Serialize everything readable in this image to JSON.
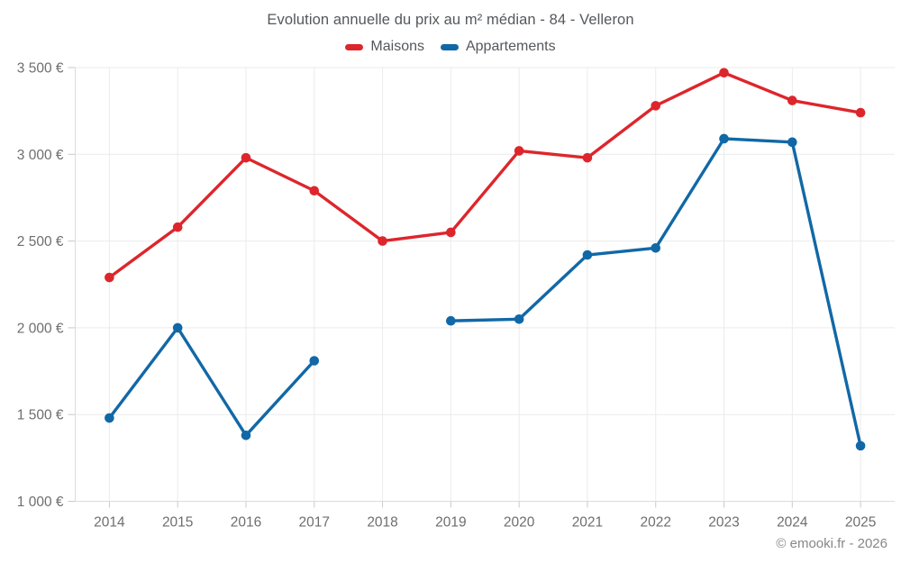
{
  "header": {
    "title": "Evolution annuelle du prix au m² médian - 84 - Velleron"
  },
  "legend": {
    "items": [
      {
        "label": "Maisons",
        "color": "#dd262c"
      },
      {
        "label": "Appartements",
        "color": "#1168a6"
      }
    ]
  },
  "footer": {
    "credit": "© emooki.fr - 2026"
  },
  "colors": {
    "maisons": "#dd262c",
    "appartements": "#1168a6",
    "gridline": "#ebebeb",
    "axis_line": "#dcdcdc",
    "tick": "#c9c9c9",
    "axis_text": "#6e6e6e"
  },
  "chart_data": {
    "type": "line",
    "title": "Evolution annuelle du prix au m² médian - 84 - Velleron",
    "xlabel": "",
    "ylabel": "",
    "categories": [
      "2014",
      "2015",
      "2016",
      "2017",
      "2018",
      "2019",
      "2020",
      "2021",
      "2022",
      "2023",
      "2024",
      "2025"
    ],
    "series": [
      {
        "name": "Maisons",
        "color": "#dd262c",
        "values": [
          2290,
          2580,
          2980,
          2790,
          2500,
          2550,
          3020,
          2980,
          3280,
          3470,
          3310,
          3240
        ]
      },
      {
        "name": "Appartements",
        "color": "#1168a6",
        "values": [
          1480,
          2000,
          1380,
          1810,
          null,
          2040,
          2050,
          2420,
          2460,
          3090,
          3070,
          1320
        ]
      }
    ],
    "ylim": [
      1000,
      3500
    ],
    "yticks": [
      {
        "value": 1000,
        "label": "1 000 €"
      },
      {
        "value": 1500,
        "label": "1 500 €"
      },
      {
        "value": 2000,
        "label": "2 000 €"
      },
      {
        "value": 2500,
        "label": "2 500 €"
      },
      {
        "value": 3000,
        "label": "3 000 €"
      },
      {
        "value": 3500,
        "label": "3 500 €"
      }
    ],
    "grid": true,
    "legend_position": "top"
  }
}
